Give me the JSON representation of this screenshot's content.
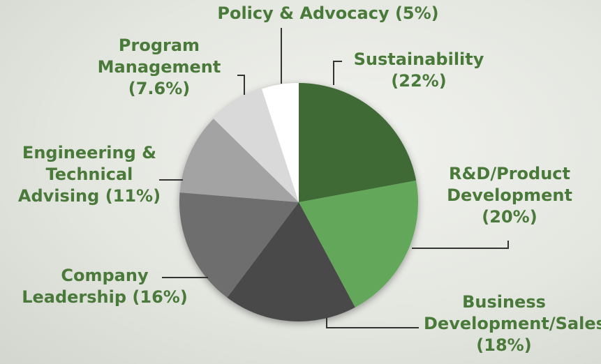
{
  "chart_data": {
    "type": "pie",
    "categories": [
      "Sustainability",
      "R&D/Product Development",
      "Business Development/Sales",
      "Company Leadership",
      "Engineering & Technical Advising",
      "Program Management",
      "Policy & Advocacy"
    ],
    "values": [
      22,
      20,
      18,
      16,
      11,
      7.6,
      5
    ],
    "value_labels": [
      "(22%)",
      "(20%)",
      "(18%)",
      "(16%)",
      "(11%)",
      "(7.6%)",
      "(5%)"
    ],
    "colors": [
      "#3f6b35",
      "#63a85a",
      "#4a4a4a",
      "#6e6e6e",
      "#a3a3a3",
      "#d9d9d9",
      "#ffffff"
    ]
  }
}
